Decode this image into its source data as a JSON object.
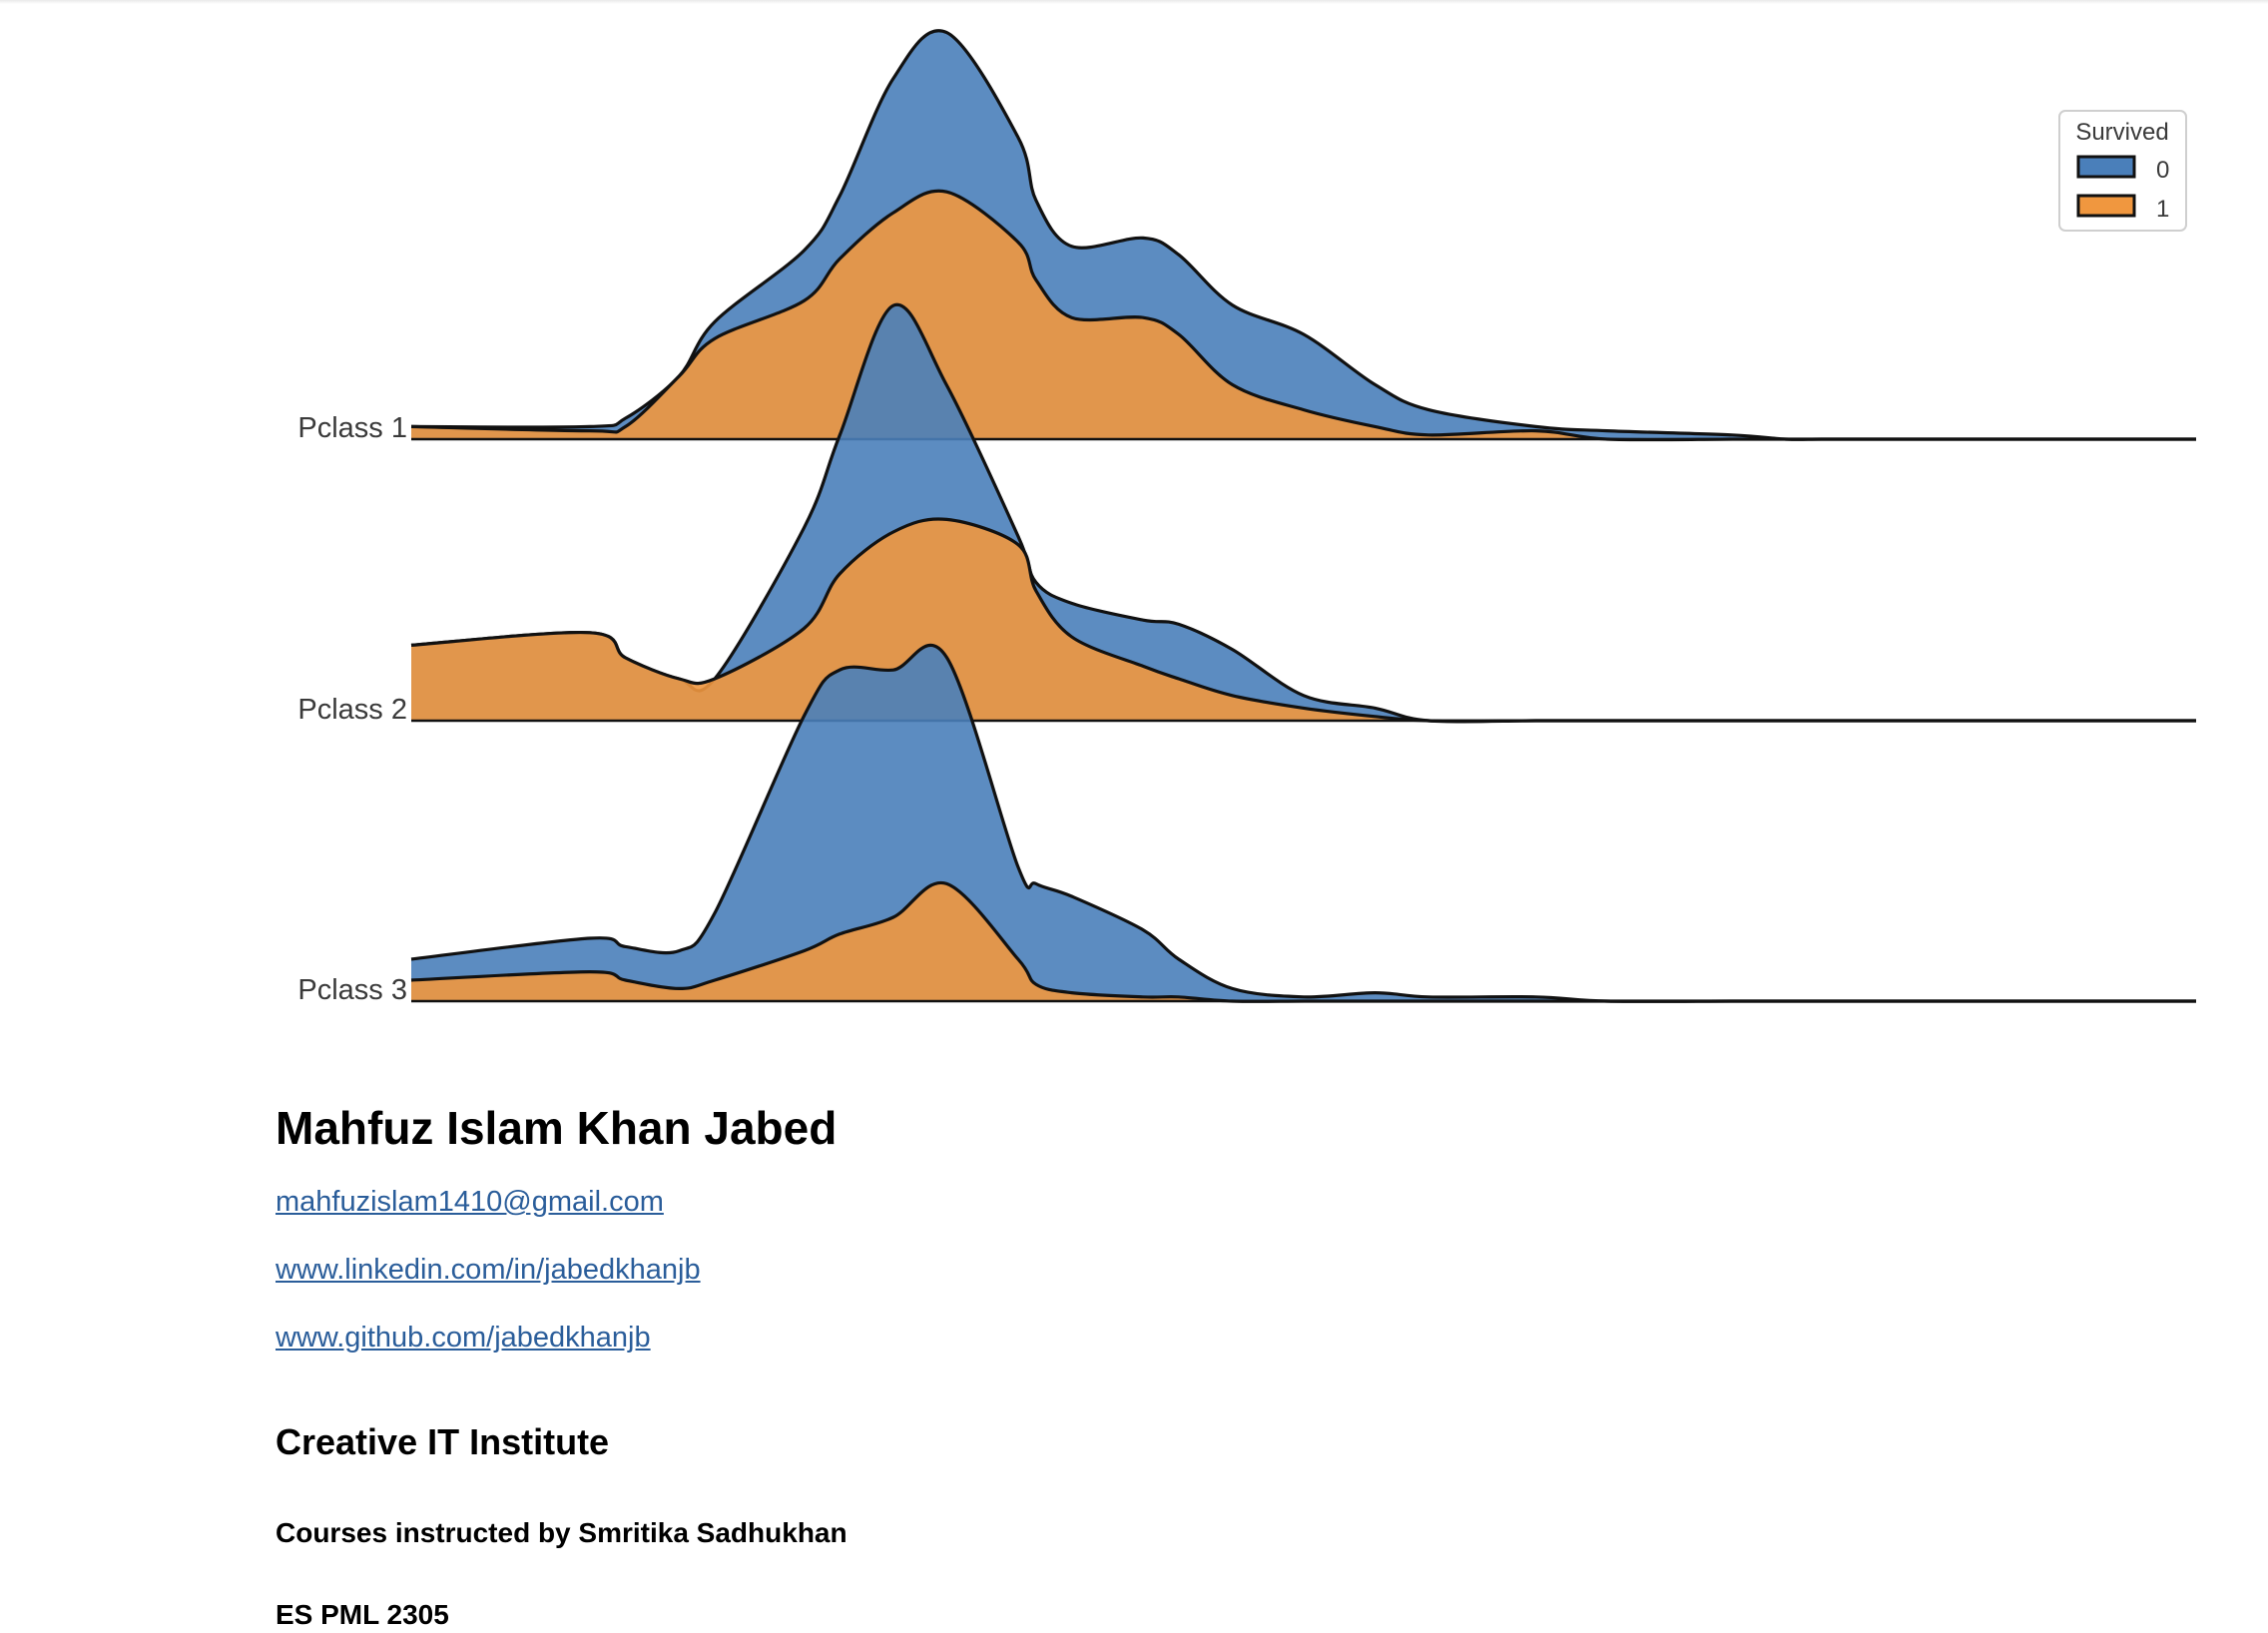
{
  "chart_data": {
    "type": "area",
    "subtype": "ridgeline",
    "title": "",
    "xlabel": "",
    "ylabel": "",
    "x_axis_ticks_shown": false,
    "grid": false,
    "xlim": [
      -10,
      90
    ],
    "categories": [
      "Pclass 1",
      "Pclass 2",
      "Pclass 3"
    ],
    "legend": {
      "title": "Survived",
      "placement": "top-right",
      "entries": [
        "0",
        "1"
      ]
    },
    "colors": {
      "0": "#4a7fba",
      "1": "#f0973f"
    },
    "ridges": [
      {
        "label": "Pclass 1",
        "x": [
          -10,
          0,
          2,
          5,
          7,
          12,
          14,
          17,
          20,
          24,
          25,
          27,
          31,
          33,
          36,
          40,
          44,
          47,
          53,
          57,
          64,
          67,
          69,
          72,
          80,
          90
        ],
        "series": [
          {
            "name": "0",
            "values": [
              0.03,
              0.03,
              0.05,
              0.15,
              0.28,
              0.45,
              0.58,
              0.86,
              0.97,
              0.72,
              0.57,
              0.46,
              0.48,
              0.44,
              0.32,
              0.25,
              0.13,
              0.07,
              0.03,
              0.02,
              0.01,
              0.0,
              0.0,
              0.0,
              0.0,
              0.0
            ]
          },
          {
            "name": "1",
            "values": [
              0.03,
              0.02,
              0.03,
              0.15,
              0.24,
              0.33,
              0.43,
              0.54,
              0.59,
              0.47,
              0.38,
              0.29,
              0.29,
              0.25,
              0.13,
              0.07,
              0.03,
              0.01,
              0.02,
              0.0,
              0.0,
              0.0,
              0.0,
              0.0,
              0.0,
              0.0
            ]
          }
        ]
      },
      {
        "label": "Pclass 2",
        "x": [
          -10,
          0,
          2,
          5,
          7,
          12,
          14,
          17,
          20,
          24,
          25,
          27,
          31,
          33,
          36,
          40,
          44,
          47,
          53,
          57,
          64,
          67,
          69,
          72,
          80,
          90
        ],
        "series": [
          {
            "name": "0",
            "values": [
              0.18,
              0.21,
              0.15,
              0.1,
              0.1,
              0.46,
              0.68,
              0.99,
              0.8,
              0.44,
              0.33,
              0.28,
              0.24,
              0.23,
              0.17,
              0.06,
              0.03,
              0.0,
              0.0,
              0.0,
              0.0,
              0.0,
              0.0,
              0.0,
              0.0,
              0.0
            ]
          },
          {
            "name": "1",
            "values": [
              0.18,
              0.21,
              0.15,
              0.1,
              0.1,
              0.22,
              0.35,
              0.45,
              0.48,
              0.42,
              0.31,
              0.2,
              0.13,
              0.1,
              0.06,
              0.03,
              0.01,
              0.0,
              0.0,
              0.0,
              0.0,
              0.0,
              0.0,
              0.0,
              0.0,
              0.0
            ]
          }
        ]
      },
      {
        "label": "Pclass 3",
        "x": [
          -10,
          0,
          2,
          5,
          7,
          12,
          14,
          17,
          20,
          24,
          25,
          27,
          31,
          33,
          36,
          40,
          44,
          47,
          53,
          57,
          64,
          67,
          69,
          72,
          80,
          90
        ],
        "series": [
          {
            "name": "0",
            "values": [
              0.1,
              0.15,
              0.13,
              0.12,
              0.21,
              0.68,
              0.79,
              0.79,
              0.82,
              0.32,
              0.28,
              0.25,
              0.17,
              0.1,
              0.03,
              0.01,
              0.02,
              0.01,
              0.01,
              0.0,
              0.0,
              0.0,
              0.0,
              0.0,
              0.0,
              0.0
            ]
          },
          {
            "name": "1",
            "values": [
              0.05,
              0.07,
              0.05,
              0.03,
              0.05,
              0.12,
              0.16,
              0.2,
              0.28,
              0.1,
              0.04,
              0.02,
              0.01,
              0.01,
              0.0,
              0.0,
              0.0,
              0.0,
              0.0,
              0.0,
              0.0,
              0.0,
              0.0,
              0.0,
              0.0,
              0.0
            ]
          }
        ]
      }
    ]
  },
  "info": {
    "name": "Mahfuz Islam Khan Jabed",
    "email": "mahfuzislam1410@gmail.com",
    "linkedin": "www.linkedin.com/in/jabedkhanjb",
    "github": "www.github.com/jabedkhanjb",
    "institute": "Creative IT Institute",
    "course_line": "Courses instructed by Smritika Sadhukhan",
    "course_code": "ES PML 2305"
  }
}
